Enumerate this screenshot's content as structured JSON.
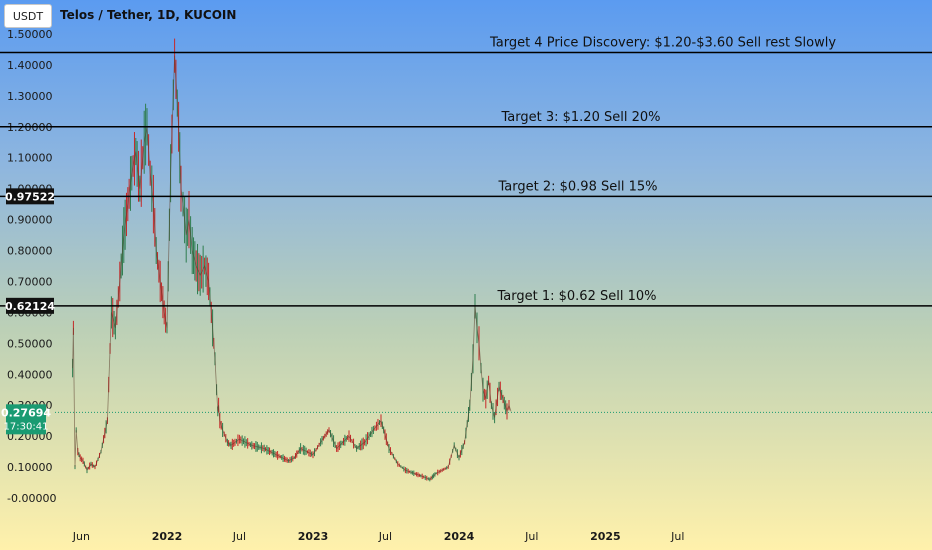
{
  "header": {
    "symbol": "USDT",
    "title": "Telos / Tether, 1D, KUCOIN"
  },
  "colors": {
    "gradient_top": "#5b9bf0",
    "gradient_bottom": "#fff1ab",
    "up_candle": "#2e7d4f",
    "down_candle": "#c62828",
    "current_price_badge": "#1a9b72",
    "level_line": "#000000"
  },
  "chart_data": {
    "type": "line",
    "title": "Telos / Tether, 1D, KUCOIN",
    "ylim": [
      -0.04,
      1.55
    ],
    "y_ticks": [
      "-0.00000",
      "0.10000",
      "0.20000",
      "0.30000",
      "0.40000",
      "0.50000",
      "0.60000",
      "0.70000",
      "0.80000",
      "0.90000",
      "1.00000",
      "1.10000",
      "1.20000",
      "1.30000",
      "1.40000",
      "1.50000"
    ],
    "x_ticks": [
      "Jun",
      "2022",
      "Jul",
      "2023",
      "Jul",
      "2024",
      "Jul",
      "2025",
      "Jul"
    ],
    "x_tick_dates": [
      "2021-06-01",
      "2022-01-01",
      "2022-07-01",
      "2023-01-01",
      "2023-07-01",
      "2024-01-01",
      "2024-07-01",
      "2025-01-01",
      "2025-07-01"
    ],
    "x_range": [
      "2021-05-01",
      "2026-01-01"
    ],
    "series": [
      {
        "x": [
          "2021-05-10",
          "2021-05-12",
          "2021-05-16",
          "2021-05-19",
          "2021-05-23",
          "2021-05-29",
          "2021-06-05",
          "2021-06-15",
          "2021-06-25",
          "2021-07-05",
          "2021-07-20",
          "2021-08-05",
          "2021-08-15",
          "2021-08-25",
          "2021-09-05",
          "2021-09-15",
          "2021-09-25",
          "2021-10-05",
          "2021-10-15",
          "2021-10-25",
          "2021-11-05",
          "2021-11-12",
          "2021-11-20",
          "2021-11-28",
          "2021-12-05",
          "2021-12-15",
          "2021-12-25",
          "2022-01-01",
          "2022-01-10",
          "2022-01-20",
          "2022-01-30",
          "2022-02-05",
          "2022-02-10",
          "2022-02-18",
          "2022-02-25",
          "2022-03-05",
          "2022-03-15",
          "2022-03-25",
          "2022-04-05",
          "2022-04-15",
          "2022-04-25",
          "2022-05-01",
          "2022-05-05",
          "2022-05-08",
          "2022-05-10",
          "2022-05-13",
          "2022-05-20",
          "2022-06-01",
          "2022-06-10",
          "2022-06-20",
          "2022-07-01",
          "2022-08-01",
          "2022-09-01",
          "2022-10-01",
          "2022-11-01",
          "2022-11-15",
          "2022-12-01",
          "2023-01-01",
          "2023-01-20",
          "2023-02-10",
          "2023-03-01",
          "2023-04-01",
          "2023-04-20",
          "2023-05-10",
          "2023-06-01",
          "2023-06-20",
          "2023-07-10",
          "2023-08-01",
          "2023-08-20",
          "2023-09-10",
          "2023-10-01",
          "2023-10-20",
          "2023-11-05",
          "2023-11-20",
          "2023-12-05",
          "2023-12-20",
          "2024-01-01",
          "2024-01-15",
          "2024-01-28",
          "2024-02-05",
          "2024-02-10",
          "2024-02-15",
          "2024-02-20",
          "2024-02-25",
          "2024-03-01",
          "2024-03-08",
          "2024-03-15",
          "2024-03-22",
          "2024-03-30",
          "2024-04-10",
          "2024-04-20",
          "2024-04-30",
          "2024-05-05",
          "2024-05-10"
        ],
        "values": [
          0.42,
          0.55,
          0.1,
          0.22,
          0.15,
          0.13,
          0.12,
          0.09,
          0.11,
          0.1,
          0.15,
          0.25,
          0.6,
          0.55,
          0.7,
          0.85,
          0.95,
          1.05,
          1.12,
          1.0,
          1.15,
          1.2,
          1.05,
          0.95,
          0.8,
          0.7,
          0.6,
          0.55,
          1.05,
          1.43,
          1.2,
          1.0,
          0.95,
          0.85,
          0.9,
          0.8,
          0.75,
          0.72,
          0.75,
          0.7,
          0.55,
          0.45,
          0.35,
          0.28,
          0.3,
          0.25,
          0.22,
          0.18,
          0.17,
          0.18,
          0.19,
          0.17,
          0.16,
          0.14,
          0.12,
          0.13,
          0.16,
          0.14,
          0.18,
          0.22,
          0.16,
          0.2,
          0.16,
          0.18,
          0.22,
          0.25,
          0.16,
          0.11,
          0.09,
          0.08,
          0.07,
          0.06,
          0.08,
          0.09,
          0.1,
          0.17,
          0.13,
          0.18,
          0.3,
          0.45,
          0.62,
          0.55,
          0.5,
          0.42,
          0.35,
          0.32,
          0.38,
          0.3,
          0.26,
          0.36,
          0.32,
          0.28,
          0.3,
          0.28
        ]
      }
    ],
    "levels": [
      {
        "value": 1.44,
        "label": "Target 4 Price Discovery: $1.20-$3.60 Sell rest Slowly"
      },
      {
        "value": 1.2,
        "label": "Target 3: $1.20 Sell 20%"
      },
      {
        "value": 0.97522,
        "label": "Target 2: $0.98 Sell 15%",
        "badge": "0.97522"
      },
      {
        "value": 0.62124,
        "label": "Target 1: $0.62 Sell 10%",
        "badge": "0.62124"
      }
    ],
    "current_price": {
      "value": 0.27694,
      "label": "0.27694",
      "countdown": "17:30:41"
    }
  }
}
